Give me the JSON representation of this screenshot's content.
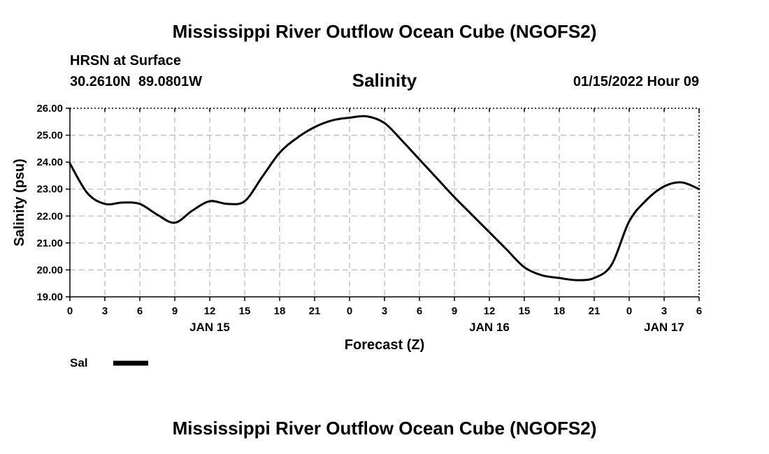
{
  "header": {
    "title": "Mississippi River Outflow Ocean Cube (NGOFS2)",
    "station": "HRSN at Surface",
    "coords": "30.2610N  89.0801W",
    "timestamp": "01/15/2022 Hour 09"
  },
  "footer": {
    "title": "Mississippi River Outflow Ocean Cube (NGOFS2)"
  },
  "chart_data": {
    "type": "line",
    "title": "Salinity",
    "xlabel": "Forecast (Z)",
    "ylabel": "Salinity (psu)",
    "xlim": [
      0,
      54
    ],
    "ylim": [
      19,
      26
    ],
    "grid": true,
    "y_ticks": [
      "19.00",
      "20.00",
      "21.00",
      "22.00",
      "23.00",
      "24.00",
      "25.00",
      "26.00"
    ],
    "y_tick_values": [
      19,
      20,
      21,
      22,
      23,
      24,
      25,
      26
    ],
    "x_ticks": [
      "0",
      "3",
      "6",
      "9",
      "12",
      "15",
      "18",
      "21",
      "0",
      "3",
      "6",
      "9",
      "12",
      "15",
      "18",
      "21",
      "0",
      "3",
      "6"
    ],
    "day_labels": [
      {
        "text": "JAN 15",
        "hour": 12
      },
      {
        "text": "JAN 16",
        "hour": 36
      },
      {
        "text": "JAN 17",
        "hour": 51
      }
    ],
    "legend": {
      "position": "bottom-left",
      "label": "Sal"
    },
    "series": [
      {
        "name": "Sal",
        "x": [
          0,
          1.5,
          3,
          4.5,
          6,
          7.5,
          9,
          10.5,
          12,
          13.5,
          15,
          16.5,
          18,
          19.5,
          21,
          22.5,
          24,
          25.5,
          27,
          28.5,
          30,
          31.5,
          33,
          34.5,
          36,
          37.5,
          39,
          40.5,
          42,
          43.5,
          45,
          46.5,
          48,
          49.5,
          51,
          52.5,
          54
        ],
        "values": [
          23.95,
          22.85,
          22.45,
          22.5,
          22.45,
          22.05,
          21.75,
          22.2,
          22.55,
          22.45,
          22.55,
          23.45,
          24.35,
          24.9,
          25.3,
          25.55,
          25.65,
          25.7,
          25.45,
          24.8,
          24.1,
          23.4,
          22.7,
          22.05,
          21.4,
          20.75,
          20.1,
          19.8,
          19.7,
          19.62,
          19.7,
          20.2,
          21.8,
          22.6,
          23.1,
          23.25,
          23.0
        ]
      }
    ]
  }
}
